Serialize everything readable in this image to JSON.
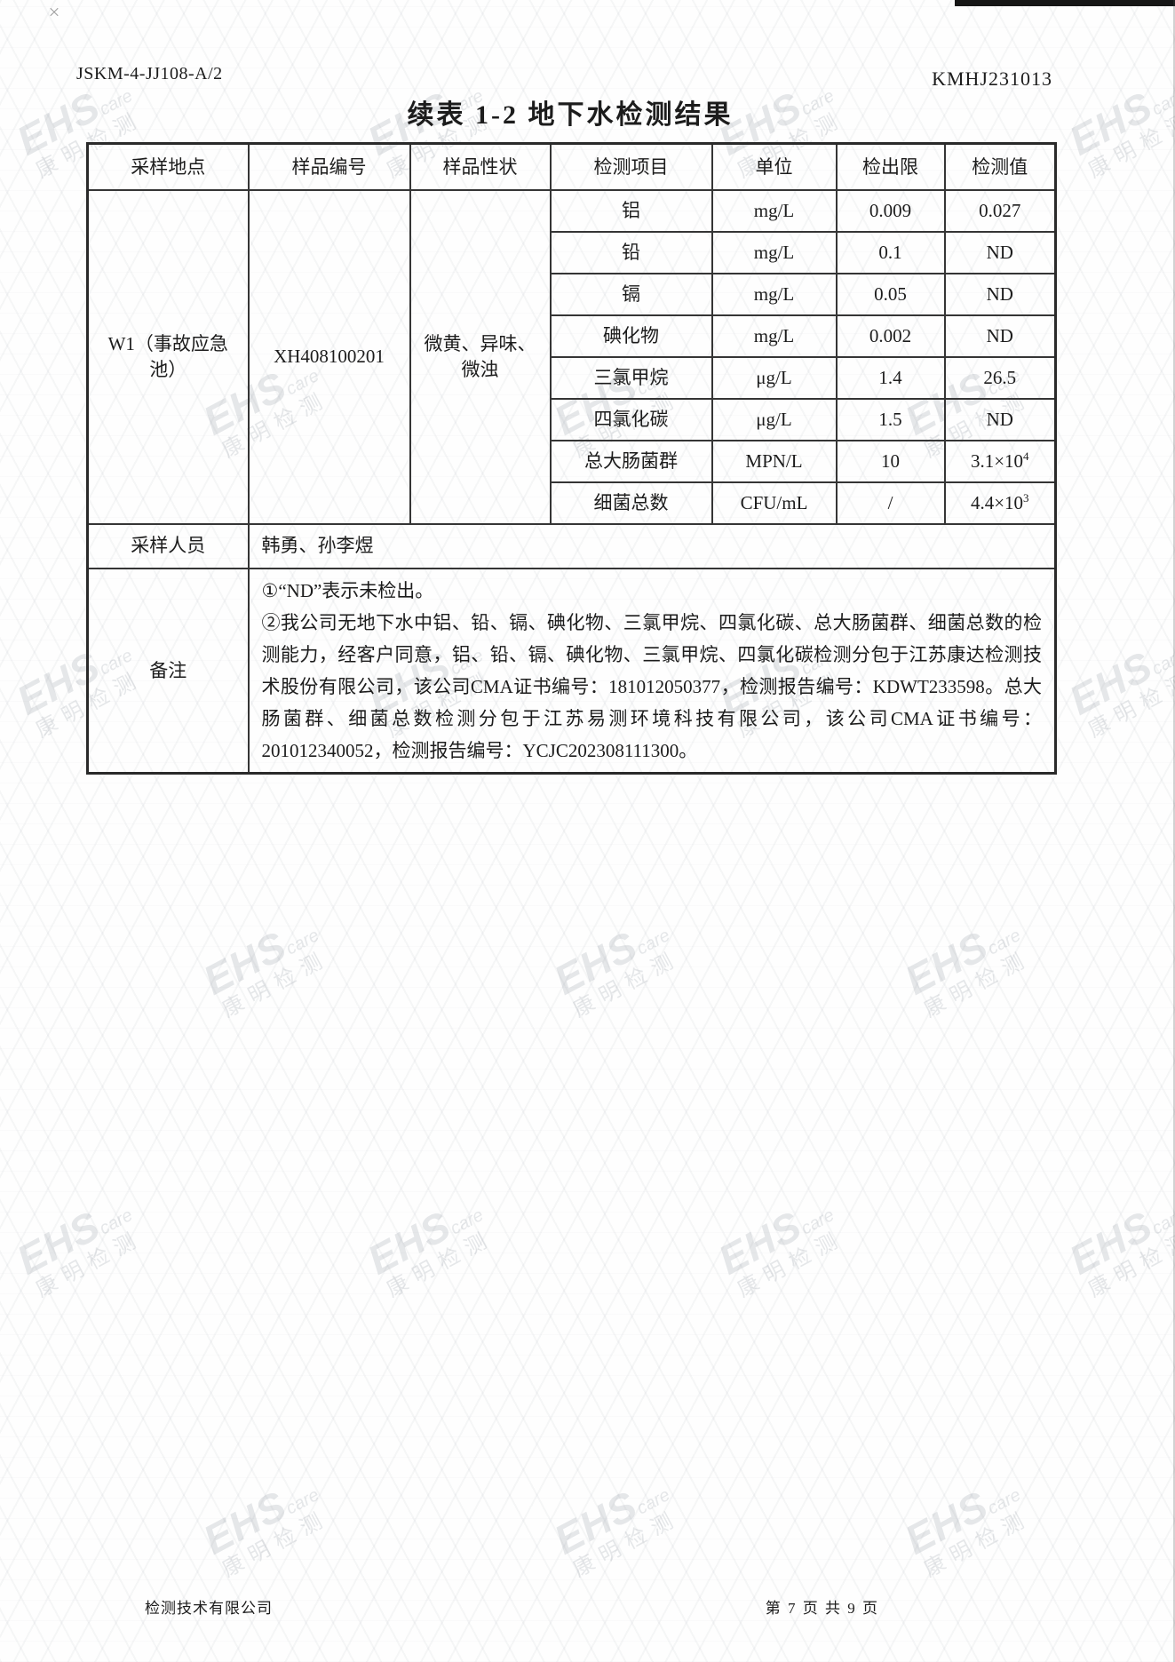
{
  "header": {
    "doc_code": "JSKM-4-JJ108-A/2",
    "report_no": "KMHJ231013",
    "title": "续表 1-2  地下水检测结果"
  },
  "table": {
    "columns": [
      "采样地点",
      "样品编号",
      "样品性状",
      "检测项目",
      "单位",
      "检出限",
      "检测值"
    ],
    "sample": {
      "location": "W1（事故应急池）",
      "code": "XH408100201",
      "appearance": "微黄、异味、微浊"
    },
    "rows": [
      {
        "item": "铝",
        "unit": "mg/L",
        "limit": "0.009",
        "value": "0.027",
        "value_sup": ""
      },
      {
        "item": "铅",
        "unit": "mg/L",
        "limit": "0.1",
        "value": "ND",
        "value_sup": ""
      },
      {
        "item": "镉",
        "unit": "mg/L",
        "limit": "0.05",
        "value": "ND",
        "value_sup": ""
      },
      {
        "item": "碘化物",
        "unit": "mg/L",
        "limit": "0.002",
        "value": "ND",
        "value_sup": ""
      },
      {
        "item": "三氯甲烷",
        "unit": "μg/L",
        "limit": "1.4",
        "value": "26.5",
        "value_sup": ""
      },
      {
        "item": "四氯化碳",
        "unit": "μg/L",
        "limit": "1.5",
        "value": "ND",
        "value_sup": ""
      },
      {
        "item": "总大肠菌群",
        "unit": "MPN/L",
        "limit": "10",
        "value": "3.1×10",
        "value_sup": "4"
      },
      {
        "item": "细菌总数",
        "unit": "CFU/mL",
        "limit": "/",
        "value": "4.4×10",
        "value_sup": "3"
      }
    ],
    "sampler": {
      "label": "采样人员",
      "value": "韩勇、孙李煜"
    },
    "remark": {
      "label": "备注",
      "paragraphs": [
        "①“ND”表示未检出。",
        "②我公司无地下水中铝、铅、镉、碘化物、三氯甲烷、四氯化碳、总大肠菌群、细菌总数的检测能力，经客户同意，铝、铅、镉、碘化物、三氯甲烷、四氯化碳检测分包于江苏康达检测技术股份有限公司，该公司CMA证书编号：181012050377，检测报告编号：KDWT233598。总大肠菌群、细菌总数检测分包于江苏易测环境科技有限公司，该公司CMA证书编号：201012340052，检测报告编号：YCJC202308111300。"
      ]
    }
  },
  "footer": {
    "left": "检测技术有限公司",
    "right": "第 7 页 共 9 页"
  },
  "watermark": {
    "brand": "EHS",
    "brand_suffix": "care",
    "cn": "康明检测"
  }
}
